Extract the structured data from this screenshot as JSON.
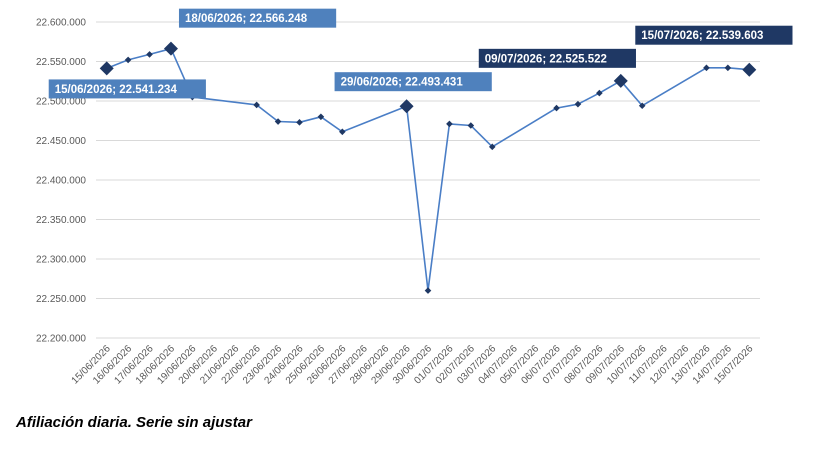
{
  "caption": "Afiliación diaria. Serie sin ajustar",
  "colors": {
    "line": "#4a7ec6",
    "marker": "#1f3864",
    "callout_light": "#4f81bd",
    "callout_dark": "#1f3864",
    "grid": "#d9d9d9"
  },
  "chart_data": {
    "type": "line",
    "categories": [
      "15/06/2026",
      "16/06/2026",
      "17/06/2026",
      "18/06/2026",
      "19/06/2026",
      "20/06/2026",
      "21/06/2026",
      "22/06/2026",
      "23/06/2026",
      "24/06/2026",
      "25/06/2026",
      "26/06/2026",
      "27/06/2026",
      "28/06/2026",
      "29/06/2026",
      "30/06/2026",
      "01/07/2026",
      "02/07/2026",
      "03/07/2026",
      "04/07/2026",
      "05/07/2026",
      "06/07/2026",
      "07/07/2026",
      "08/07/2026",
      "09/07/2026",
      "10/07/2026",
      "11/07/2026",
      "12/07/2026",
      "13/07/2026",
      "14/07/2026",
      "15/07/2026"
    ],
    "x_labels": [
      "15/06/2026",
      "16/06/2026",
      "17/06/2026",
      "18/06/2026",
      "19/06/2026",
      "20/06/2026",
      "21/06/2026",
      "22/06/2026",
      "23/06/2026",
      "24/06/2026",
      "25/06/2026",
      "26/06/2026",
      "27/06/2026",
      "28/06/2026",
      "29/06/2026",
      "30/06/2026",
      "01/07/2026",
      "02/07/2026",
      "03/07/2026",
      "04/07/2026",
      "05/07/2026",
      "06/07/2026",
      "07/07/2026",
      "08/07/2026",
      "09/07/2026",
      "10/07/2026",
      "11/07/2026",
      "12/07/2026",
      "13/07/2026",
      "14/07/2026",
      "15/07/2026"
    ],
    "points": [
      {
        "x": 0,
        "y": 22541234
      },
      {
        "x": 1,
        "y": 22552000
      },
      {
        "x": 2,
        "y": 22559000
      },
      {
        "x": 3,
        "y": 22566248
      },
      {
        "x": 4,
        "y": 22505000
      },
      {
        "x": 7,
        "y": 22495000
      },
      {
        "x": 8,
        "y": 22474000
      },
      {
        "x": 9,
        "y": 22473000
      },
      {
        "x": 10,
        "y": 22480000
      },
      {
        "x": 11,
        "y": 22461000
      },
      {
        "x": 14,
        "y": 22493431
      },
      {
        "x": 15,
        "y": 22260000
      },
      {
        "x": 16,
        "y": 22471000
      },
      {
        "x": 17,
        "y": 22469000
      },
      {
        "x": 18,
        "y": 22442000
      },
      {
        "x": 21,
        "y": 22491000
      },
      {
        "x": 22,
        "y": 22496000
      },
      {
        "x": 23,
        "y": 22510000
      },
      {
        "x": 24,
        "y": 22525522
      },
      {
        "x": 25,
        "y": 22494000
      },
      {
        "x": 28,
        "y": 22542000
      },
      {
        "x": 29,
        "y": 22542000
      },
      {
        "x": 30,
        "y": 22539603
      }
    ],
    "highlighted": [
      {
        "x": 0,
        "label": "15/06/2026; 22.541.234",
        "style": "light"
      },
      {
        "x": 3,
        "label": "18/06/2026; 22.566.248",
        "style": "light"
      },
      {
        "x": 14,
        "label": "29/06/2026; 22.493.431",
        "style": "light"
      },
      {
        "x": 24,
        "label": "09/07/2026; 22.525.522",
        "style": "dark"
      },
      {
        "x": 30,
        "label": "15/07/2026; 22.539.603",
        "style": "dark"
      }
    ],
    "ylim": [
      22200000,
      22600000
    ],
    "y_ticks": [
      {
        "value": 22200000,
        "label": "22.200.000"
      },
      {
        "value": 22250000,
        "label": "22.250.000"
      },
      {
        "value": 22300000,
        "label": "22.300.000"
      },
      {
        "value": 22350000,
        "label": "22.350.000"
      },
      {
        "value": 22400000,
        "label": "22.400.000"
      },
      {
        "value": 22450000,
        "label": "22.450.000"
      },
      {
        "value": 22500000,
        "label": "22.500.000"
      },
      {
        "value": 22550000,
        "label": "22.550.000"
      },
      {
        "value": 22600000,
        "label": "22.600.000"
      }
    ],
    "grid": true,
    "title": "",
    "xlabel": "",
    "ylabel": ""
  }
}
